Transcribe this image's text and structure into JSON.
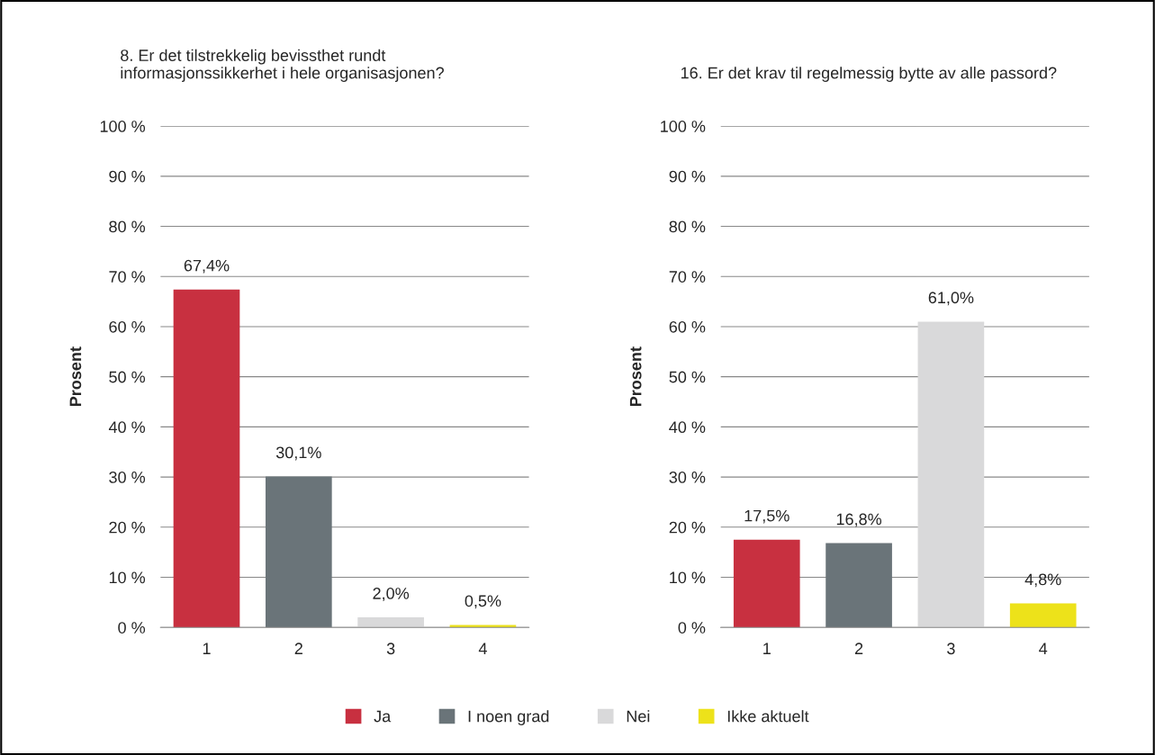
{
  "chart_data": [
    {
      "type": "bar",
      "title": "8. Er det tilstrekkelig bevissthet rundt\ninformasjonssikkerhet i hele organisasjonen?",
      "ylabel": "Prosent",
      "categories": [
        "1",
        "2",
        "3",
        "4"
      ],
      "series": [
        {
          "name": "Ja",
          "color": "#c83040",
          "values": [
            67.4,
            null,
            null,
            null
          ]
        },
        {
          "name": "I noen grad",
          "color": "#6a7479",
          "values": [
            null,
            30.1,
            null,
            null
          ]
        },
        {
          "name": "Nei",
          "color": "#d9d9da",
          "values": [
            null,
            null,
            2.0,
            null
          ]
        },
        {
          "name": "Ikke aktuelt",
          "color": "#ede21a",
          "values": [
            null,
            null,
            null,
            0.5
          ]
        }
      ],
      "value_labels": [
        "67,4%",
        "30,1%",
        "2,0%",
        "0,5%"
      ],
      "ylim": [
        0,
        100
      ],
      "yticks": [
        {
          "value": 0,
          "label": "0 %"
        },
        {
          "value": 10,
          "label": "10 %"
        },
        {
          "value": 20,
          "label": "20 %"
        },
        {
          "value": 30,
          "label": "30 %"
        },
        {
          "value": 40,
          "label": "40 %"
        },
        {
          "value": 50,
          "label": "50 %"
        },
        {
          "value": 60,
          "label": "60 %"
        },
        {
          "value": 70,
          "label": "70 %"
        },
        {
          "value": 80,
          "label": "80 %"
        },
        {
          "value": 90,
          "label": "90 %"
        },
        {
          "value": 100,
          "label": "100 %"
        }
      ],
      "grid": "y",
      "legend": "bottom"
    },
    {
      "type": "bar",
      "title": "16. Er det krav til regelmessig bytte av alle passord?",
      "ylabel": "Prosent",
      "categories": [
        "1",
        "2",
        "3",
        "4"
      ],
      "series": [
        {
          "color": "#c83040",
          "values": [
            17.5,
            null,
            null,
            null
          ]
        },
        {
          "color": "#6a7479",
          "values": [
            null,
            16.8,
            null,
            null
          ]
        },
        {
          "color": "#d9d9da",
          "values": [
            null,
            null,
            61.0,
            null
          ]
        },
        {
          "color": "#ede21a",
          "values": [
            null,
            null,
            null,
            4.8
          ]
        }
      ],
      "value_labels": [
        "17,5%",
        "16,8%",
        "61,0%",
        "4,8%"
      ],
      "ylim": [
        0,
        100
      ],
      "yticks": [
        {
          "value": 0,
          "label": "0 %"
        },
        {
          "value": 10,
          "label": "10 %"
        },
        {
          "value": 20,
          "label": "20 %"
        },
        {
          "value": 30,
          "label": "30 %"
        },
        {
          "value": 40,
          "label": "40 %"
        },
        {
          "value": 50,
          "label": "50 %"
        },
        {
          "value": 60,
          "label": "60 %"
        },
        {
          "value": 70,
          "label": "70 %"
        },
        {
          "value": 80,
          "label": "80 %"
        },
        {
          "value": 90,
          "label": "90 %"
        },
        {
          "value": 100,
          "label": "100 %"
        }
      ],
      "grid": "y"
    }
  ]
}
